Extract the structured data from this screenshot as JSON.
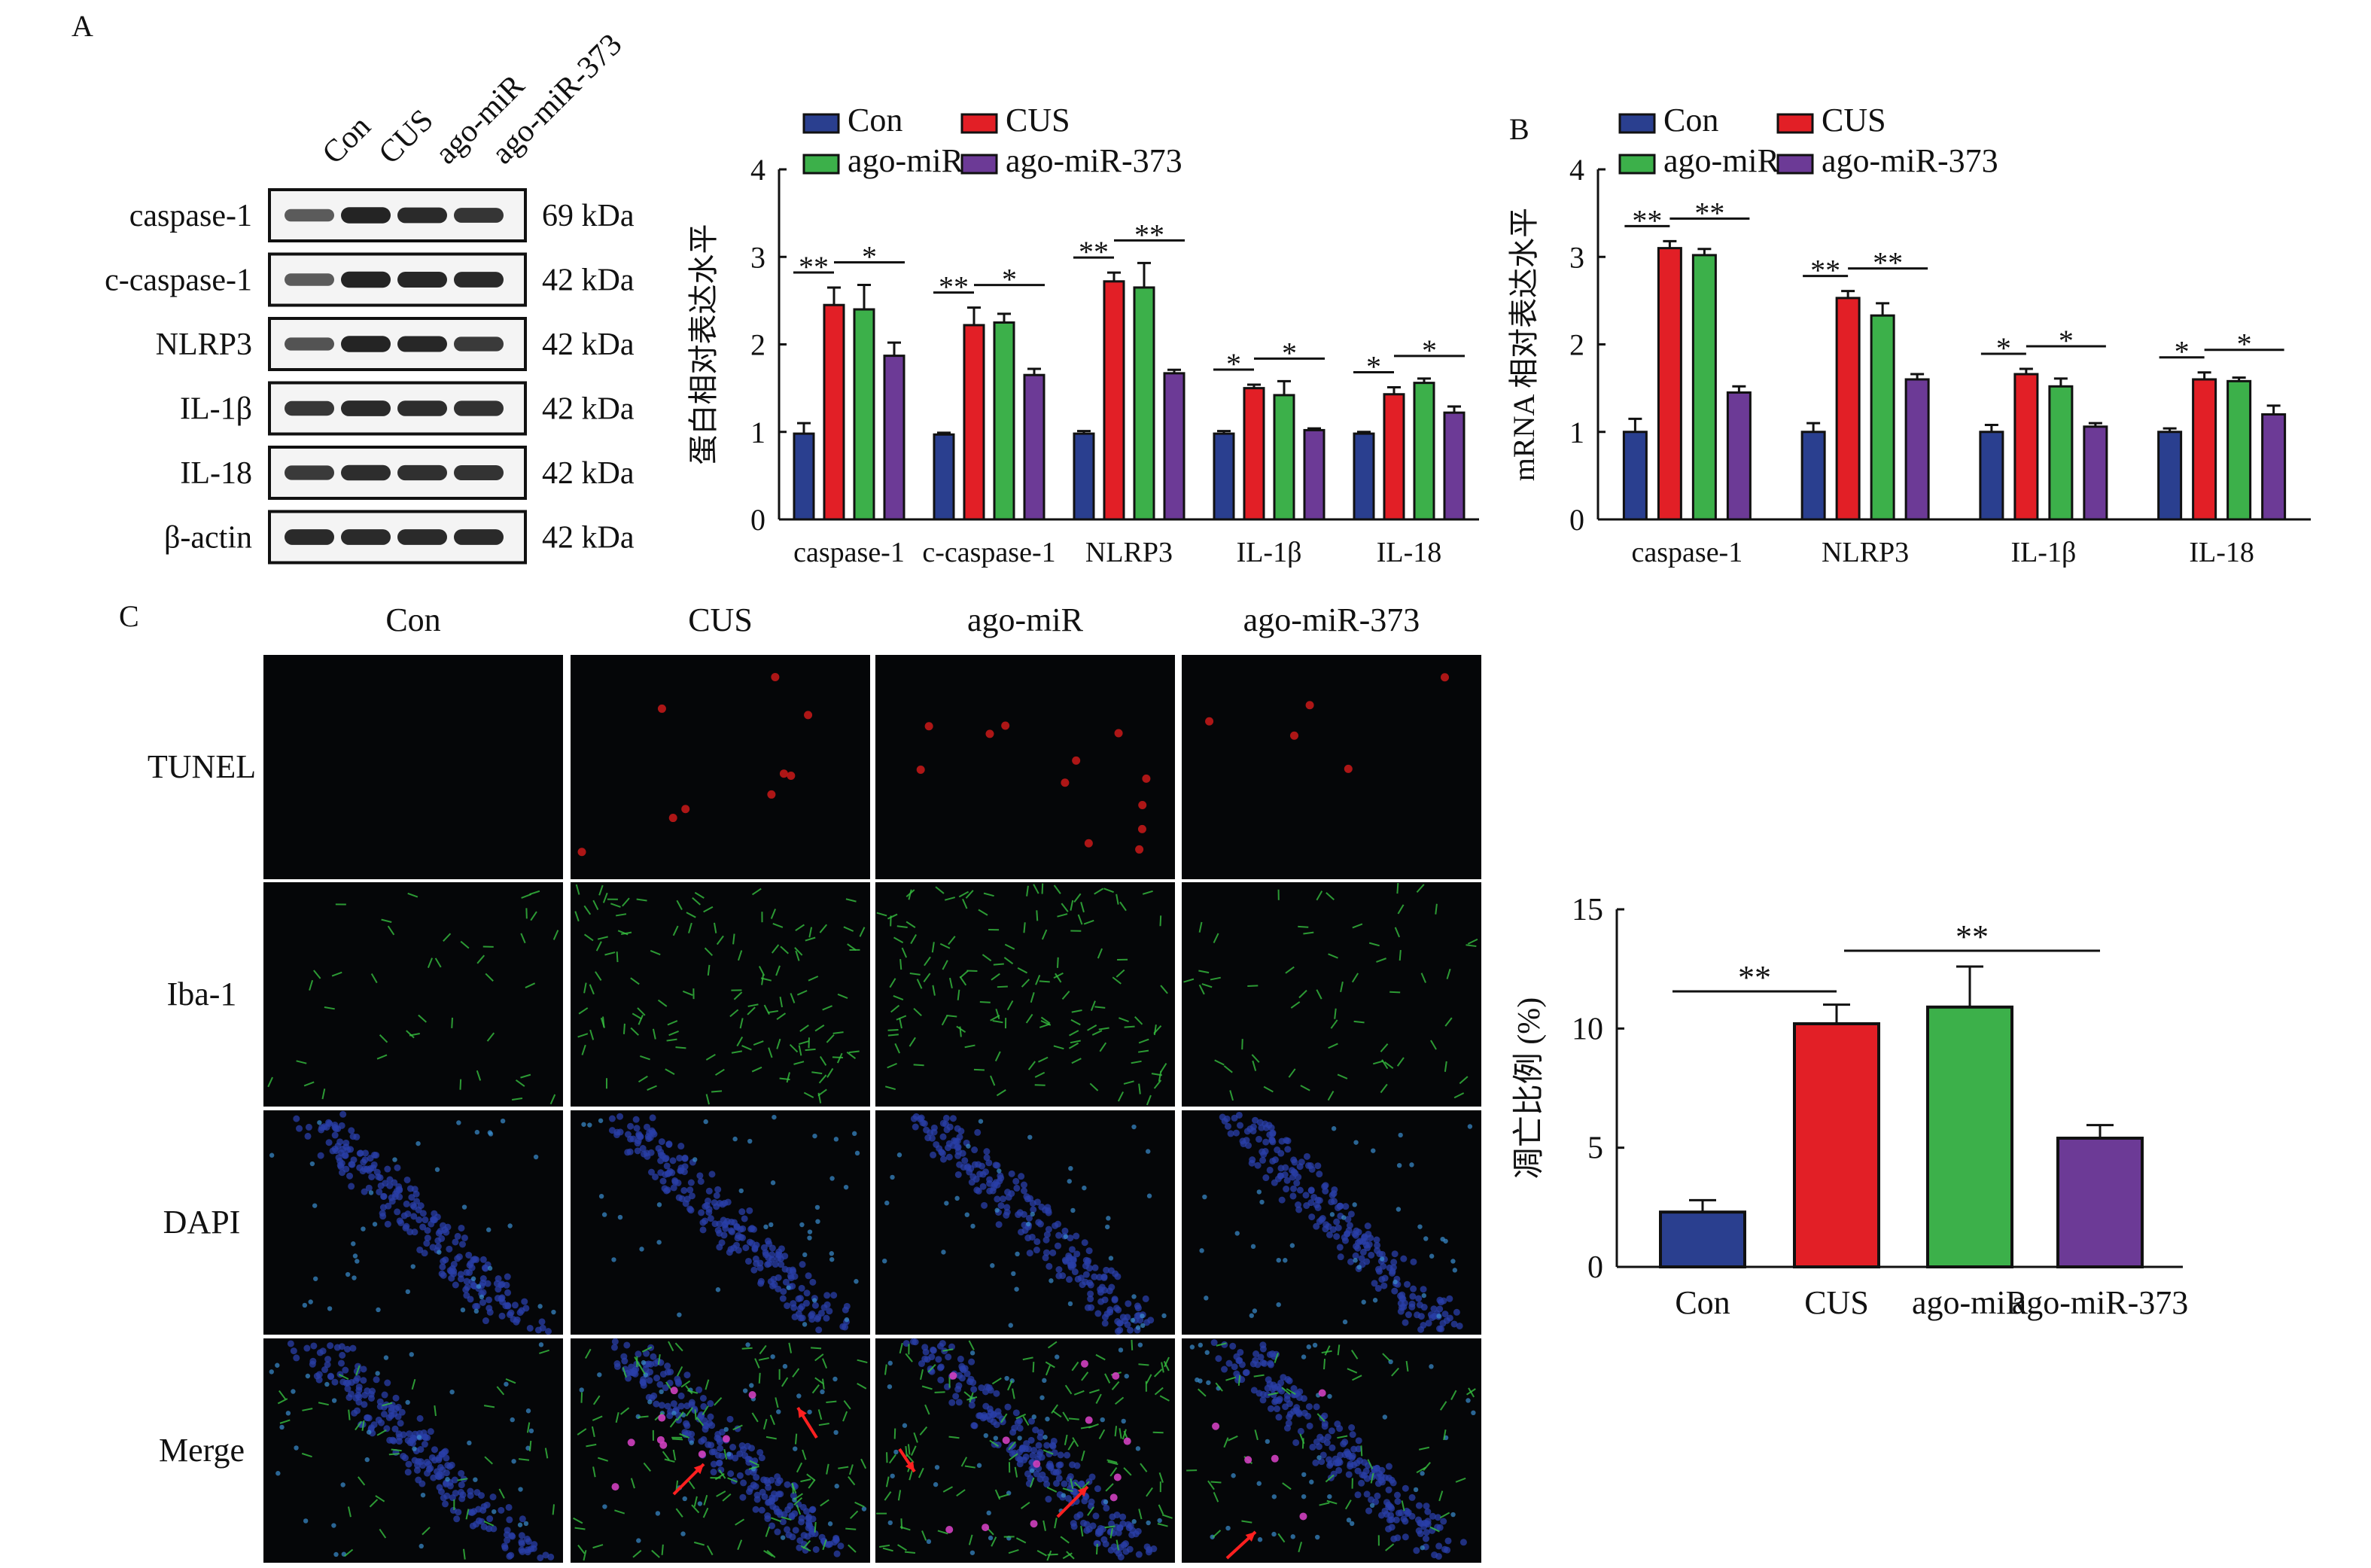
{
  "panel_labels": {
    "a": "A",
    "b": "B",
    "c": "C"
  },
  "colors": {
    "Con": "#2a3f8f",
    "CUS": "#e21f26",
    "ago-miR": "#3cb04a",
    "ago-miR-373": "#6c3a96"
  },
  "western_blot": {
    "lanes": [
      "Con",
      "CUS",
      "ago-miR",
      "ago-miR-373"
    ],
    "bands": [
      {
        "name": "caspase-1",
        "size": "69 kDa",
        "intensity": [
          0.55,
          0.95,
          0.9,
          0.82
        ]
      },
      {
        "name": "c-caspase-1",
        "size": "42 kDa",
        "intensity": [
          0.55,
          0.95,
          0.92,
          0.9
        ]
      },
      {
        "name": "NLRP3",
        "size": "42 kDa",
        "intensity": [
          0.6,
          0.95,
          0.92,
          0.78
        ]
      },
      {
        "name": "IL-1β",
        "size": "42 kDa",
        "intensity": [
          0.8,
          0.9,
          0.88,
          0.85
        ]
      },
      {
        "name": "IL-18",
        "size": "42 kDa",
        "intensity": [
          0.78,
          0.88,
          0.86,
          0.84
        ]
      },
      {
        "name": "β-actin",
        "size": "42 kDa",
        "intensity": [
          0.9,
          0.9,
          0.9,
          0.9
        ]
      }
    ]
  },
  "microscopy": {
    "columns": [
      "Con",
      "CUS",
      "ago-miR",
      "ago-miR-373"
    ],
    "rows": [
      "TUNEL",
      "Iba-1",
      "DAPI",
      "Merge"
    ]
  },
  "chart_data": [
    {
      "id": "protein",
      "type": "bar",
      "title": "",
      "ylabel": "蛋白相对表达水平",
      "xlabel": "",
      "ylim": [
        0,
        4
      ],
      "yticks": [
        "0",
        "1",
        "2",
        "3",
        "4"
      ],
      "legend": {
        "position": "top",
        "entries": [
          "Con",
          "CUS",
          "ago-miR",
          "ago-miR-373"
        ]
      },
      "categories": [
        "caspase-1",
        "c-caspase-1",
        "NLRP3",
        "IL-1β",
        "IL-18"
      ],
      "series": [
        {
          "name": "Con",
          "values": [
            0.98,
            0.97,
            0.98,
            0.98,
            0.98
          ],
          "errors": [
            0.12,
            0.02,
            0.03,
            0.03,
            0.02
          ]
        },
        {
          "name": "CUS",
          "values": [
            2.45,
            2.22,
            2.72,
            1.5,
            1.43
          ],
          "errors": [
            0.2,
            0.2,
            0.1,
            0.04,
            0.08
          ]
        },
        {
          "name": "ago-miR",
          "values": [
            2.4,
            2.25,
            2.65,
            1.42,
            1.56
          ],
          "errors": [
            0.28,
            0.1,
            0.28,
            0.16,
            0.05
          ]
        },
        {
          "name": "ago-miR-373",
          "values": [
            1.87,
            1.65,
            1.67,
            1.02,
            1.22
          ],
          "errors": [
            0.15,
            0.07,
            0.04,
            0.02,
            0.07
          ]
        }
      ],
      "significance": [
        {
          "category": 0,
          "from": 0,
          "to": 1,
          "label": "**"
        },
        {
          "category": 0,
          "from": 1,
          "to": 3,
          "label": "*"
        },
        {
          "category": 1,
          "from": 0,
          "to": 1,
          "label": "**"
        },
        {
          "category": 1,
          "from": 1,
          "to": 3,
          "label": "*"
        },
        {
          "category": 2,
          "from": 0,
          "to": 1,
          "label": "**"
        },
        {
          "category": 2,
          "from": 1,
          "to": 3,
          "label": "**"
        },
        {
          "category": 3,
          "from": 0,
          "to": 1,
          "label": "*"
        },
        {
          "category": 3,
          "from": 1,
          "to": 3,
          "label": "*"
        },
        {
          "category": 4,
          "from": 0,
          "to": 1,
          "label": "*"
        },
        {
          "category": 4,
          "from": 1,
          "to": 3,
          "label": "*"
        }
      ]
    },
    {
      "id": "mrna",
      "type": "bar",
      "title": "",
      "ylabel": "mRNA 相对表达水平",
      "xlabel": "",
      "ylim": [
        0,
        4
      ],
      "yticks": [
        "0",
        "1",
        "2",
        "3",
        "4"
      ],
      "legend": {
        "position": "top",
        "entries": [
          "Con",
          "CUS",
          "ago-miR",
          "ago-miR-373"
        ]
      },
      "categories": [
        "caspase-1",
        "NLRP3",
        "IL-1β",
        "IL-18"
      ],
      "series": [
        {
          "name": "Con",
          "values": [
            1.0,
            1.0,
            1.0,
            1.0
          ],
          "errors": [
            0.15,
            0.1,
            0.08,
            0.04
          ]
        },
        {
          "name": "CUS",
          "values": [
            3.1,
            2.53,
            1.66,
            1.6
          ],
          "errors": [
            0.08,
            0.08,
            0.06,
            0.08
          ]
        },
        {
          "name": "ago-miR",
          "values": [
            3.02,
            2.33,
            1.52,
            1.58
          ],
          "errors": [
            0.07,
            0.14,
            0.09,
            0.04
          ]
        },
        {
          "name": "ago-miR-373",
          "values": [
            1.45,
            1.6,
            1.06,
            1.2
          ],
          "errors": [
            0.07,
            0.06,
            0.04,
            0.1
          ]
        }
      ],
      "significance": [
        {
          "category": 0,
          "from": 0,
          "to": 1,
          "label": "**"
        },
        {
          "category": 0,
          "from": 1,
          "to": 3,
          "label": "**"
        },
        {
          "category": 1,
          "from": 0,
          "to": 1,
          "label": "**"
        },
        {
          "category": 1,
          "from": 1,
          "to": 3,
          "label": "**"
        },
        {
          "category": 2,
          "from": 0,
          "to": 1,
          "label": "*"
        },
        {
          "category": 2,
          "from": 1,
          "to": 3,
          "label": "*"
        },
        {
          "category": 3,
          "from": 0,
          "to": 1,
          "label": "*"
        },
        {
          "category": 3,
          "from": 1,
          "to": 3,
          "label": "*"
        }
      ]
    },
    {
      "id": "apoptosis",
      "type": "bar",
      "title": "",
      "ylabel": "凋亡比例 (%)",
      "xlabel": "",
      "ylim": [
        0,
        15
      ],
      "yticks": [
        "0",
        "5",
        "10",
        "15"
      ],
      "categories": [
        "Con",
        "CUS",
        "ago-miR",
        "ago-miR-373"
      ],
      "values": [
        2.3,
        10.2,
        10.9,
        5.4
      ],
      "errors": [
        0.5,
        0.8,
        1.7,
        0.55
      ],
      "significance": [
        {
          "from": 0,
          "to": 1,
          "label": "**"
        },
        {
          "from": 1,
          "to": 3,
          "label": "**"
        }
      ]
    }
  ]
}
